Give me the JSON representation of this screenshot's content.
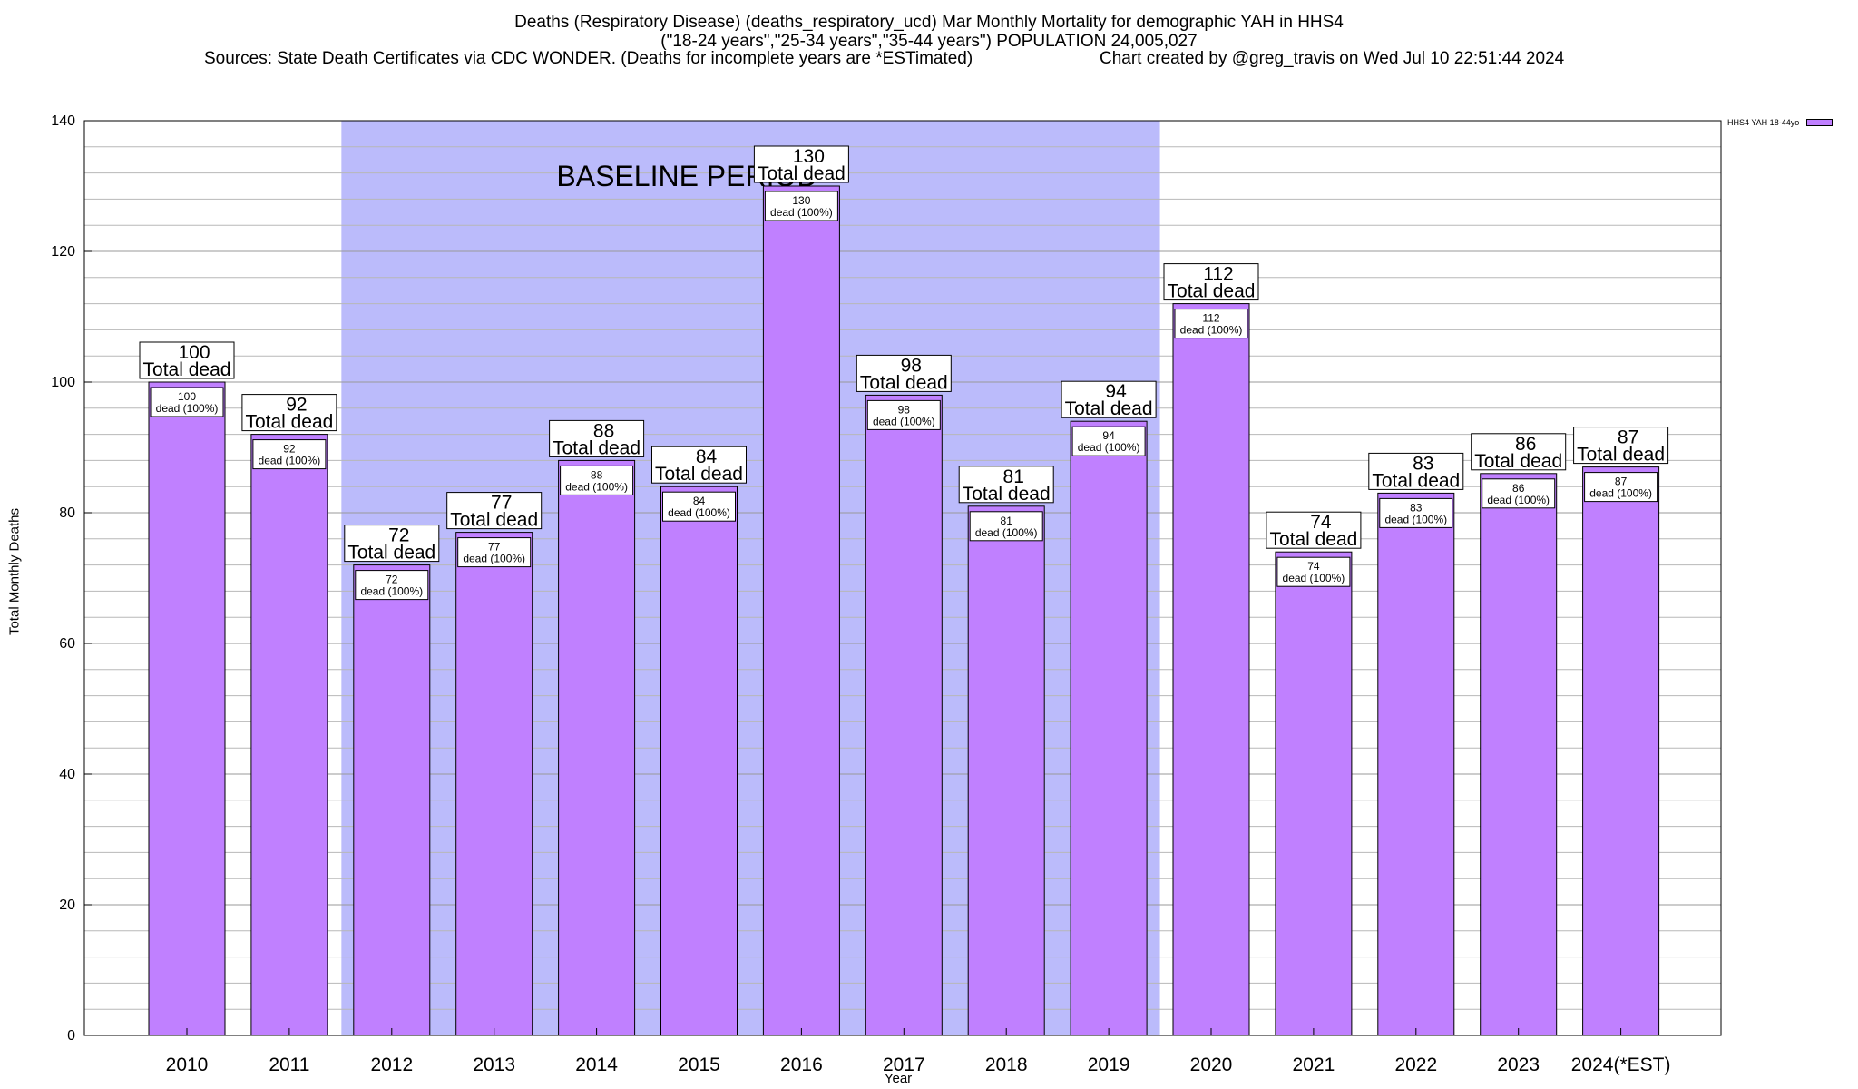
{
  "header": {
    "title_line1": "Deaths (Respiratory Disease) (deaths_respiratory_ucd) Mar Monthly Mortality for demographic YAH in HHS4",
    "title_line2": "(\"18-24 years\",\"25-34 years\",\"35-44 years\") POPULATION 24,005,027",
    "sources": "Sources: State Death Certificates via CDC WONDER. (Deaths for incomplete years are *ESTimated)",
    "created": "Chart created by @greg_travis on Wed Jul 10 22:51:44 2024"
  },
  "legend": {
    "label": "HHS4 YAH 18-44yo",
    "color": "#c080ff"
  },
  "colors": {
    "bar": "#c080ff",
    "baseline_band": "#bbbbfb",
    "bar_stroke": "#000000"
  },
  "chart_data": {
    "type": "bar",
    "title": "Deaths (Respiratory Disease) (deaths_respiratory_ucd) Mar Monthly Mortality for demographic YAH in HHS4",
    "xlabel": "Year",
    "ylabel": "Total Monthly Deaths",
    "ylim": [
      0,
      140
    ],
    "yticks": [
      0,
      20,
      40,
      60,
      80,
      100,
      120,
      140
    ],
    "grid": true,
    "legend_position": "top-right",
    "categories": [
      "2010",
      "2011",
      "2012",
      "2013",
      "2014",
      "2015",
      "2016",
      "2017",
      "2018",
      "2019",
      "2020",
      "2021",
      "2022",
      "2023",
      "2024(*EST)"
    ],
    "series": [
      {
        "name": "HHS4 YAH 18-44yo",
        "values": [
          100,
          92,
          72,
          77,
          88,
          84,
          130,
          98,
          81,
          94,
          112,
          74,
          83,
          86,
          87
        ]
      }
    ],
    "baseline_period": {
      "label": "BASELINE PERIOD",
      "from": "2012",
      "to": "2019"
    },
    "annotations": {
      "total_label": "Total dead",
      "inner_label": "dead (100%)"
    }
  }
}
